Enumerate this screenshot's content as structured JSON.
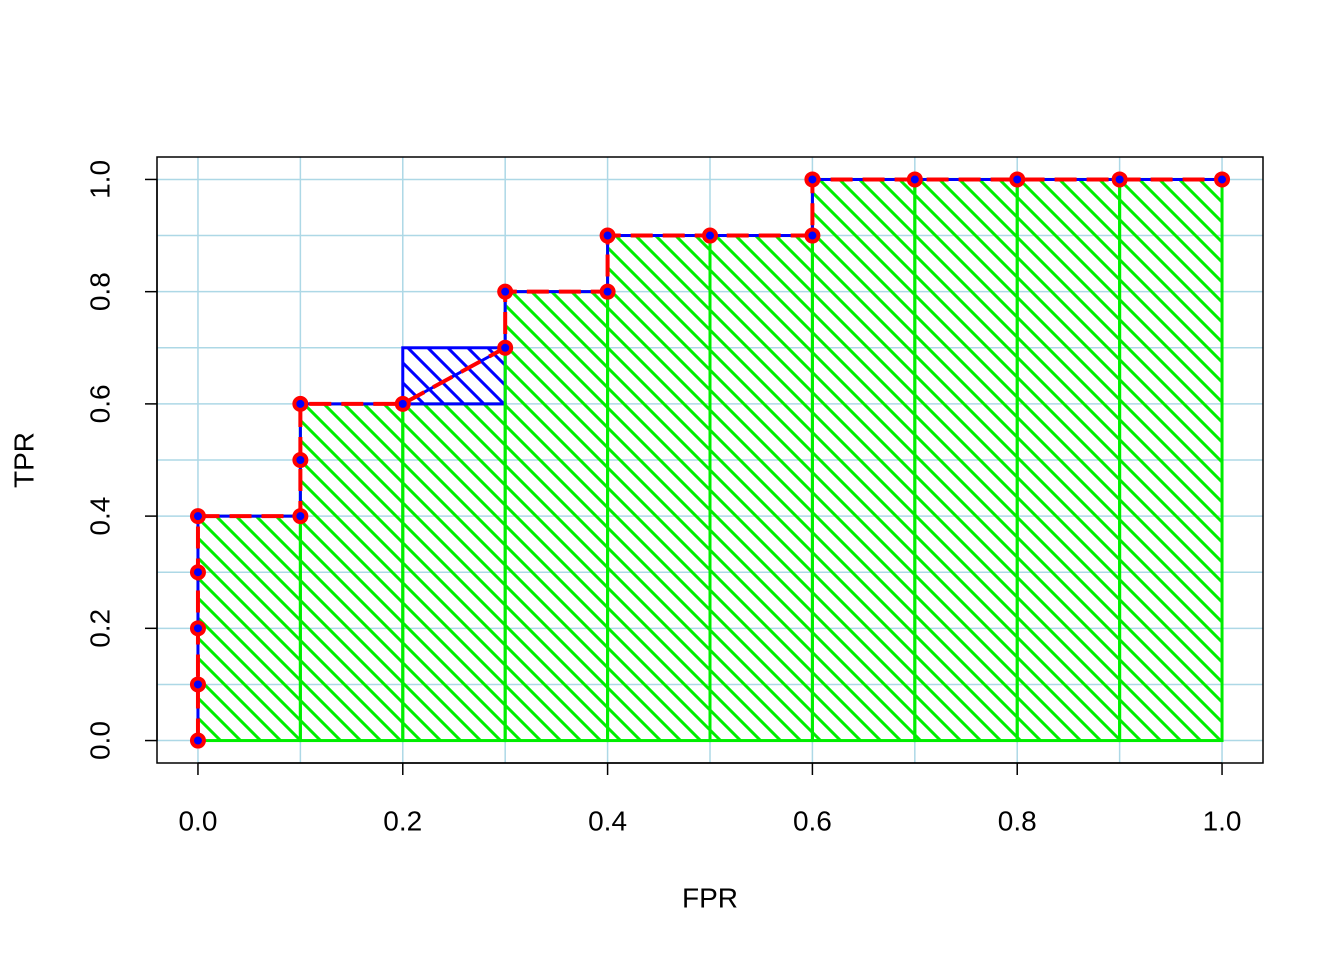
{
  "chart_data": {
    "type": "roc_step",
    "x_label": "FPR",
    "y_label": "TPR",
    "x": [
      0,
      0,
      0,
      0,
      0,
      0.1,
      0.1,
      0.1,
      0.2,
      0.3,
      0.3,
      0.4,
      0.4,
      0.5,
      0.6,
      0.6,
      0.7,
      0.8,
      0.9,
      1.0
    ],
    "y": [
      0,
      0.1,
      0.2,
      0.3,
      0.4,
      0.4,
      0.5,
      0.6,
      0.6,
      0.7,
      0.8,
      0.8,
      0.9,
      0.9,
      0.9,
      1.0,
      1.0,
      1.0,
      1.0,
      1.0
    ],
    "line_color": "#0000ff",
    "curve_color": "#ff0000",
    "area_color": "#00ee00",
    "tie_color": "#0000ff",
    "grid_color": "#add8e6",
    "xlim": [
      -0.04,
      1.04
    ],
    "ylim": [
      -0.04,
      1.04
    ],
    "xticks": [
      {
        "value": 0,
        "label": "0.0"
      },
      0.2,
      0.4,
      0.6,
      0.8,
      {
        "value": 1,
        "label": "1.0"
      }
    ],
    "yticks": [
      {
        "value": 0,
        "label": "0.0"
      },
      0.2,
      0.4,
      0.6,
      0.8,
      {
        "value": 1,
        "label": "1.0"
      }
    ],
    "xgrid": [
      0,
      0.1,
      0.2,
      0.3,
      0.4,
      0.5,
      0.6,
      0.7,
      0.8,
      0.9,
      1.0
    ],
    "ygrid": [
      0,
      0.1,
      0.2,
      0.3,
      0.4,
      0.5,
      0.6,
      0.7,
      0.8,
      0.9,
      1.0
    ],
    "grid": true
  }
}
